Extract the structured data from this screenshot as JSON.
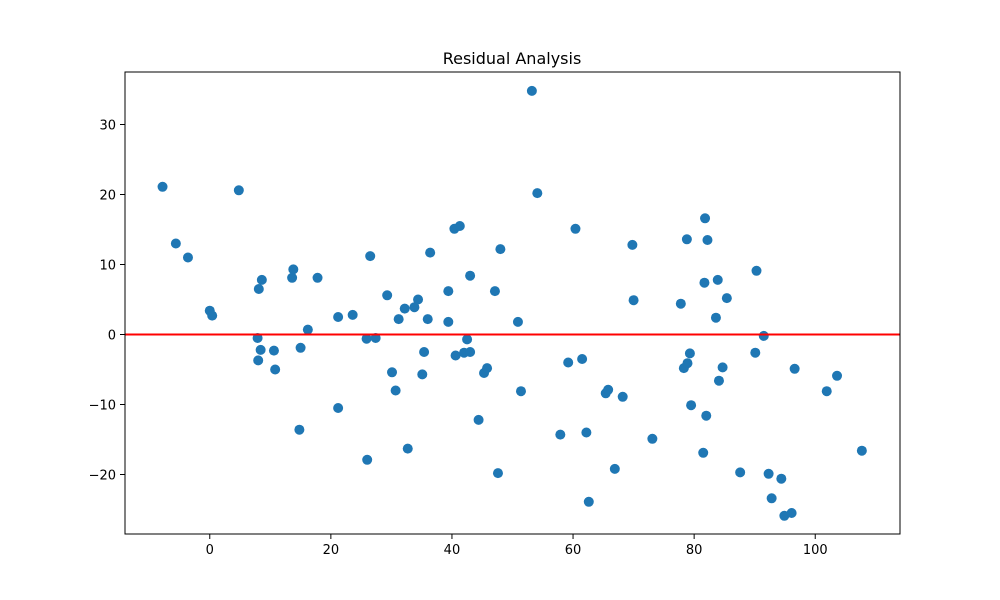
{
  "chart_data": {
    "type": "scatter",
    "title": "Residual Analysis",
    "xlabel": "",
    "ylabel": "",
    "xlim": [
      -14,
      114
    ],
    "ylim": [
      -28.5,
      37.5
    ],
    "xticks": [
      0,
      20,
      40,
      60,
      80,
      100
    ],
    "yticks": [
      -20,
      -10,
      0,
      10,
      20,
      30
    ],
    "ytick_labels": [
      "−20",
      "−10",
      "0",
      "10",
      "20",
      "30"
    ],
    "grid": false,
    "point_color": "#1f77b4",
    "reference_line": {
      "y": 0,
      "color": "#ff0000"
    },
    "points": [
      {
        "x": -7.8,
        "y": 21.1
      },
      {
        "x": -5.6,
        "y": 13.0
      },
      {
        "x": -3.6,
        "y": 11.0
      },
      {
        "x": 0.0,
        "y": 3.4
      },
      {
        "x": 0.4,
        "y": 2.7
      },
      {
        "x": 4.8,
        "y": 20.6
      },
      {
        "x": 7.9,
        "y": -0.5
      },
      {
        "x": 8.0,
        "y": -3.7
      },
      {
        "x": 8.1,
        "y": 6.5
      },
      {
        "x": 8.4,
        "y": -2.2
      },
      {
        "x": 8.6,
        "y": 7.8
      },
      {
        "x": 10.6,
        "y": -2.3
      },
      {
        "x": 10.8,
        "y": -5.0
      },
      {
        "x": 13.6,
        "y": 8.1
      },
      {
        "x": 13.8,
        "y": 9.3
      },
      {
        "x": 14.8,
        "y": -13.6
      },
      {
        "x": 15.0,
        "y": -1.9
      },
      {
        "x": 16.2,
        "y": 0.7
      },
      {
        "x": 17.8,
        "y": 8.1
      },
      {
        "x": 21.2,
        "y": -10.5
      },
      {
        "x": 21.2,
        "y": 2.5
      },
      {
        "x": 23.6,
        "y": 2.8
      },
      {
        "x": 25.9,
        "y": -0.6
      },
      {
        "x": 26.0,
        "y": -17.9
      },
      {
        "x": 26.5,
        "y": 11.2
      },
      {
        "x": 27.4,
        "y": -0.5
      },
      {
        "x": 29.3,
        "y": 5.6
      },
      {
        "x": 30.1,
        "y": -5.4
      },
      {
        "x": 30.7,
        "y": -8.0
      },
      {
        "x": 31.2,
        "y": 2.2
      },
      {
        "x": 32.2,
        "y": 3.7
      },
      {
        "x": 32.7,
        "y": -16.3
      },
      {
        "x": 33.8,
        "y": 3.9
      },
      {
        "x": 34.4,
        "y": 5.0
      },
      {
        "x": 35.1,
        "y": -5.7
      },
      {
        "x": 35.4,
        "y": -2.5
      },
      {
        "x": 36.0,
        "y": 2.2
      },
      {
        "x": 36.4,
        "y": 11.7
      },
      {
        "x": 39.4,
        "y": 6.2
      },
      {
        "x": 39.4,
        "y": 1.8
      },
      {
        "x": 40.4,
        "y": 15.1
      },
      {
        "x": 40.6,
        "y": -3.0
      },
      {
        "x": 41.3,
        "y": 15.5
      },
      {
        "x": 42.0,
        "y": -2.6
      },
      {
        "x": 42.5,
        "y": -0.7
      },
      {
        "x": 43.0,
        "y": -2.5
      },
      {
        "x": 43.0,
        "y": 8.4
      },
      {
        "x": 44.4,
        "y": -12.2
      },
      {
        "x": 45.3,
        "y": -5.5
      },
      {
        "x": 45.8,
        "y": -4.8
      },
      {
        "x": 47.1,
        "y": 6.2
      },
      {
        "x": 47.6,
        "y": -19.8
      },
      {
        "x": 48.0,
        "y": 12.2
      },
      {
        "x": 50.9,
        "y": 1.8
      },
      {
        "x": 51.4,
        "y": -8.1
      },
      {
        "x": 53.2,
        "y": 34.8
      },
      {
        "x": 54.1,
        "y": 20.2
      },
      {
        "x": 57.9,
        "y": -14.3
      },
      {
        "x": 59.2,
        "y": -4.0
      },
      {
        "x": 60.4,
        "y": 15.1
      },
      {
        "x": 61.5,
        "y": -3.5
      },
      {
        "x": 62.2,
        "y": -14.0
      },
      {
        "x": 62.6,
        "y": -23.9
      },
      {
        "x": 65.4,
        "y": -8.4
      },
      {
        "x": 65.8,
        "y": -7.9
      },
      {
        "x": 66.9,
        "y": -19.2
      },
      {
        "x": 68.2,
        "y": -8.9
      },
      {
        "x": 69.8,
        "y": 12.8
      },
      {
        "x": 70.0,
        "y": 4.9
      },
      {
        "x": 73.1,
        "y": -14.9
      },
      {
        "x": 77.8,
        "y": 4.4
      },
      {
        "x": 78.3,
        "y": -4.8
      },
      {
        "x": 78.8,
        "y": 13.6
      },
      {
        "x": 78.9,
        "y": -4.1
      },
      {
        "x": 79.3,
        "y": -2.7
      },
      {
        "x": 79.5,
        "y": -10.1
      },
      {
        "x": 81.5,
        "y": -16.9
      },
      {
        "x": 81.7,
        "y": 7.4
      },
      {
        "x": 81.8,
        "y": 16.6
      },
      {
        "x": 82.0,
        "y": -11.6
      },
      {
        "x": 82.2,
        "y": 13.5
      },
      {
        "x": 83.6,
        "y": 2.4
      },
      {
        "x": 83.9,
        "y": 7.8
      },
      {
        "x": 84.1,
        "y": -6.6
      },
      {
        "x": 84.7,
        "y": -4.7
      },
      {
        "x": 85.4,
        "y": 5.2
      },
      {
        "x": 87.6,
        "y": -19.7
      },
      {
        "x": 90.1,
        "y": -2.6
      },
      {
        "x": 90.3,
        "y": 9.1
      },
      {
        "x": 91.5,
        "y": -0.2
      },
      {
        "x": 92.3,
        "y": -19.9
      },
      {
        "x": 92.8,
        "y": -23.4
      },
      {
        "x": 94.4,
        "y": -20.6
      },
      {
        "x": 94.9,
        "y": -25.9
      },
      {
        "x": 96.1,
        "y": -25.5
      },
      {
        "x": 96.6,
        "y": -4.9
      },
      {
        "x": 101.9,
        "y": -8.1
      },
      {
        "x": 103.6,
        "y": -5.9
      },
      {
        "x": 107.7,
        "y": -16.6
      }
    ]
  }
}
